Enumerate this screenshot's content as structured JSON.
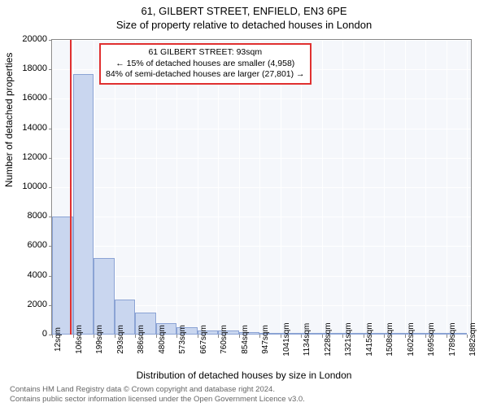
{
  "title_line1": "61, GILBERT STREET, ENFIELD, EN3 6PE",
  "title_line2": "Size of property relative to detached houses in London",
  "ylabel": "Number of detached properties",
  "xlabel": "Distribution of detached houses by size in London",
  "footer_line1": "Contains HM Land Registry data © Crown copyright and database right 2024.",
  "footer_line2": "Contains public sector information licensed under the Open Government Licence v3.0.",
  "chart": {
    "type": "histogram",
    "plot_bg": "#f5f7fb",
    "grid_color": "#ffffff",
    "border_color": "#888888",
    "bar_fill": "#c9d6ef",
    "bar_stroke": "#8ba3d4",
    "marker_color": "#e03030",
    "info_border": "#e03030",
    "ylim": [
      0,
      20000
    ],
    "ytick_step": 2000,
    "xtick_labels": [
      "12sqm",
      "106sqm",
      "199sqm",
      "293sqm",
      "386sqm",
      "480sqm",
      "573sqm",
      "667sqm",
      "760sqm",
      "854sqm",
      "947sqm",
      "1041sqm",
      "1134sqm",
      "1228sqm",
      "1321sqm",
      "1415sqm",
      "1508sqm",
      "1602sqm",
      "1695sqm",
      "1789sqm",
      "1882sqm"
    ],
    "xtick_values": [
      12,
      106,
      199,
      293,
      386,
      480,
      573,
      667,
      760,
      854,
      947,
      1041,
      1134,
      1228,
      1321,
      1415,
      1508,
      1602,
      1695,
      1789,
      1882
    ],
    "x_range": [
      12,
      1900
    ],
    "bars": [
      {
        "x0": 12,
        "x1": 106,
        "y": 8000
      },
      {
        "x0": 106,
        "x1": 199,
        "y": 17700
      },
      {
        "x0": 199,
        "x1": 293,
        "y": 5200
      },
      {
        "x0": 293,
        "x1": 386,
        "y": 2400
      },
      {
        "x0": 386,
        "x1": 480,
        "y": 1500
      },
      {
        "x0": 480,
        "x1": 573,
        "y": 800
      },
      {
        "x0": 573,
        "x1": 667,
        "y": 500
      },
      {
        "x0": 667,
        "x1": 760,
        "y": 300
      },
      {
        "x0": 760,
        "x1": 854,
        "y": 250
      },
      {
        "x0": 854,
        "x1": 947,
        "y": 150
      },
      {
        "x0": 947,
        "x1": 1041,
        "y": 120
      },
      {
        "x0": 1041,
        "x1": 1134,
        "y": 80
      },
      {
        "x0": 1134,
        "x1": 1228,
        "y": 60
      },
      {
        "x0": 1228,
        "x1": 1321,
        "y": 40
      },
      {
        "x0": 1321,
        "x1": 1415,
        "y": 30
      },
      {
        "x0": 1415,
        "x1": 1508,
        "y": 25
      },
      {
        "x0": 1508,
        "x1": 1602,
        "y": 20
      },
      {
        "x0": 1602,
        "x1": 1695,
        "y": 15
      },
      {
        "x0": 1695,
        "x1": 1789,
        "y": 12
      },
      {
        "x0": 1789,
        "x1": 1882,
        "y": 10
      }
    ],
    "marker_x": 93,
    "info_box": {
      "line1": "61 GILBERT STREET: 93sqm",
      "line2": "← 15% of detached houses are smaller (4,958)",
      "line3": "84% of semi-detached houses are larger (27,801) →"
    }
  }
}
